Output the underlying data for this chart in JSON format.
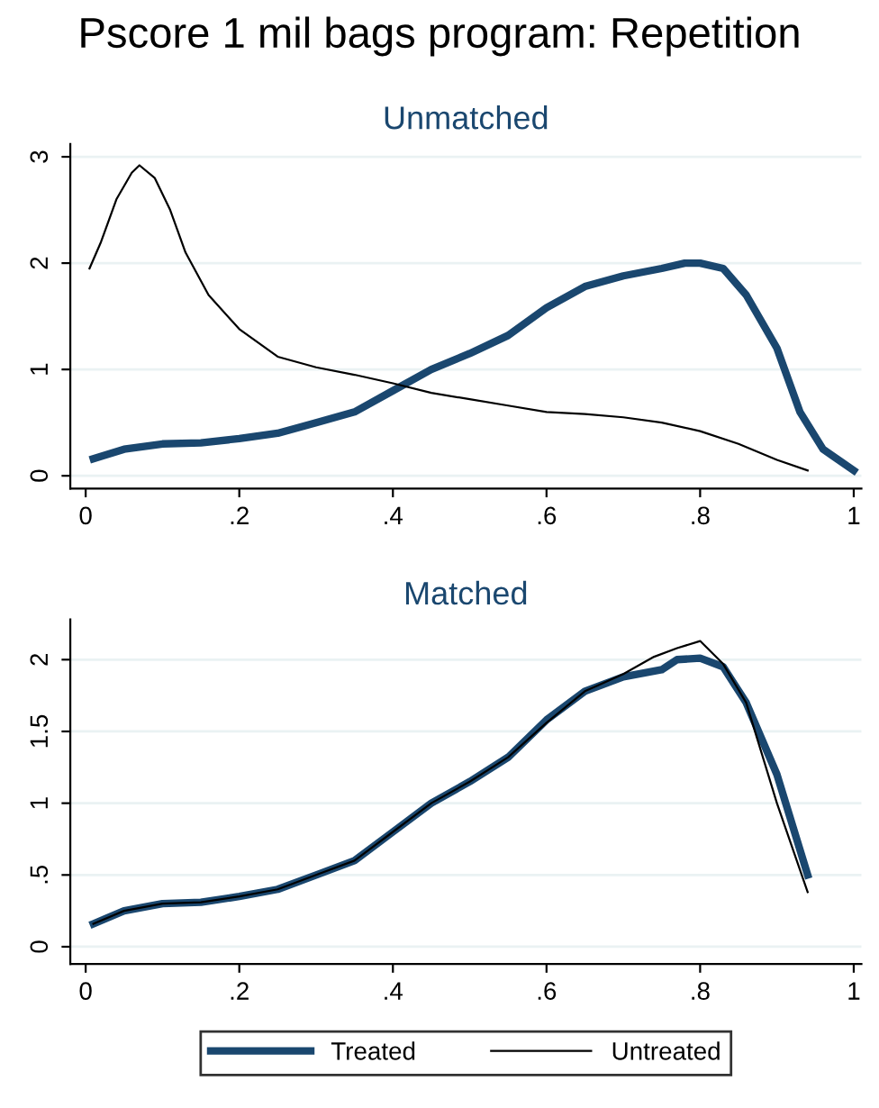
{
  "chart_data": [
    {
      "type": "line",
      "title": "Unmatched",
      "annotations": [
        "Pscore 1 mil bags program: Repetition"
      ],
      "xlim": [
        -0.02,
        1.01
      ],
      "ylim": [
        -0.12,
        3.12
      ],
      "xticks": [
        {
          "value": 0,
          "label": "0"
        },
        {
          "value": 0.2,
          "label": ".2"
        },
        {
          "value": 0.4,
          "label": ".4"
        },
        {
          "value": 0.6,
          "label": ".6"
        },
        {
          "value": 0.8,
          "label": ".8"
        },
        {
          "value": 1,
          "label": "1"
        }
      ],
      "yticks": [
        0,
        1,
        2,
        3
      ],
      "grid": "y",
      "legend": false,
      "series": [
        {
          "color": "#1a476f",
          "x": [
            0.01,
            0.05,
            0.1,
            0.15,
            0.2,
            0.25,
            0.3,
            0.35,
            0.4,
            0.45,
            0.5,
            0.55,
            0.6,
            0.65,
            0.7,
            0.75,
            0.78,
            0.8,
            0.83,
            0.86,
            0.9,
            0.93,
            0.96,
            1.0
          ],
          "values": [
            0.16,
            0.25,
            0.3,
            0.31,
            0.35,
            0.4,
            0.5,
            0.6,
            0.8,
            1.0,
            1.15,
            1.32,
            1.58,
            1.78,
            1.88,
            1.95,
            2.0,
            2.0,
            1.95,
            1.7,
            1.2,
            0.6,
            0.25,
            0.05
          ]
        },
        {
          "color": "#000000",
          "x": [
            0.005,
            0.02,
            0.04,
            0.06,
            0.07,
            0.09,
            0.11,
            0.13,
            0.16,
            0.2,
            0.25,
            0.3,
            0.35,
            0.4,
            0.45,
            0.5,
            0.55,
            0.6,
            0.65,
            0.7,
            0.75,
            0.8,
            0.85,
            0.9,
            0.94
          ],
          "values": [
            1.95,
            2.2,
            2.6,
            2.85,
            2.92,
            2.8,
            2.5,
            2.1,
            1.7,
            1.38,
            1.12,
            1.02,
            0.95,
            0.87,
            0.78,
            0.72,
            0.66,
            0.6,
            0.58,
            0.55,
            0.5,
            0.42,
            0.3,
            0.15,
            0.05
          ]
        }
      ]
    },
    {
      "type": "line",
      "title": "Matched",
      "xlim": [
        -0.02,
        1.01
      ],
      "ylim": [
        -0.12,
        2.28
      ],
      "xticks": [
        {
          "value": 0,
          "label": "0"
        },
        {
          "value": 0.2,
          "label": ".2"
        },
        {
          "value": 0.4,
          "label": ".4"
        },
        {
          "value": 0.6,
          "label": ".6"
        },
        {
          "value": 0.8,
          "label": ".8"
        },
        {
          "value": 1,
          "label": "1"
        }
      ],
      "yticks": [
        {
          "value": 0,
          "label": "0"
        },
        {
          "value": 0.5,
          "label": ".5"
        },
        {
          "value": 1,
          "label": "1"
        },
        {
          "value": 1.5,
          "label": "1.5"
        },
        {
          "value": 2,
          "label": "2"
        }
      ],
      "grid": "y",
      "legend": "bottom",
      "series": [
        {
          "name": "Treated",
          "color": "#1a476f",
          "x": [
            0.01,
            0.05,
            0.1,
            0.15,
            0.2,
            0.25,
            0.3,
            0.35,
            0.4,
            0.45,
            0.5,
            0.55,
            0.6,
            0.65,
            0.7,
            0.75,
            0.77,
            0.8,
            0.83,
            0.86,
            0.9,
            0.94
          ],
          "values": [
            0.16,
            0.25,
            0.3,
            0.31,
            0.35,
            0.4,
            0.5,
            0.6,
            0.8,
            1.0,
            1.15,
            1.32,
            1.58,
            1.78,
            1.88,
            1.93,
            2.0,
            2.01,
            1.95,
            1.7,
            1.2,
            0.5
          ]
        },
        {
          "name": "Untreated",
          "color": "#000000",
          "x": [
            0.01,
            0.05,
            0.1,
            0.15,
            0.2,
            0.25,
            0.3,
            0.35,
            0.4,
            0.45,
            0.5,
            0.55,
            0.6,
            0.65,
            0.7,
            0.74,
            0.77,
            0.8,
            0.83,
            0.86,
            0.9,
            0.94
          ],
          "values": [
            0.16,
            0.25,
            0.3,
            0.31,
            0.35,
            0.4,
            0.5,
            0.6,
            0.8,
            1.0,
            1.15,
            1.32,
            1.56,
            1.78,
            1.9,
            2.02,
            2.08,
            2.13,
            1.97,
            1.7,
            1.0,
            0.38
          ]
        }
      ]
    }
  ]
}
